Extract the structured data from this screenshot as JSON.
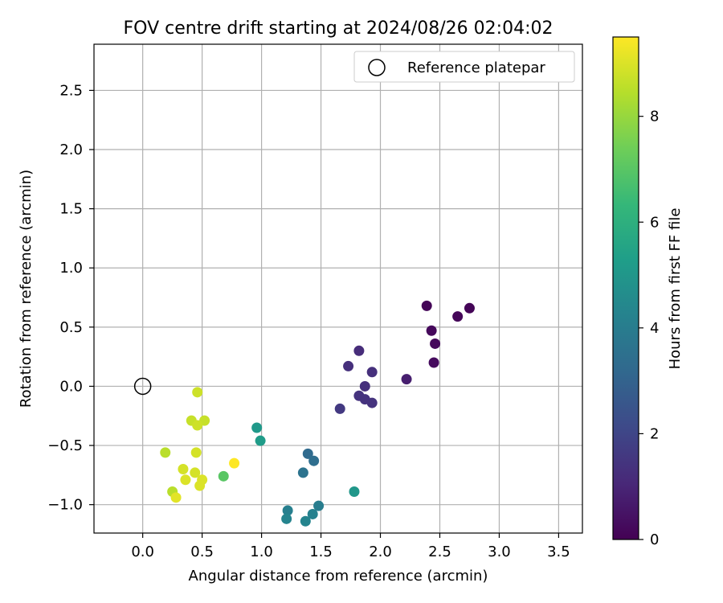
{
  "chart_data": {
    "type": "scatter",
    "title": "FOV centre drift starting at 2024/08/26 02:04:02",
    "xlabel": "Angular distance from reference (arcmin)",
    "ylabel": "Rotation from reference (arcmin)",
    "xlim": [
      -0.41,
      3.7
    ],
    "ylim": [
      -1.24,
      2.89
    ],
    "xticks": [
      "0.0",
      "0.5",
      "1.0",
      "1.5",
      "2.0",
      "2.5",
      "3.0",
      "3.5"
    ],
    "xtick_values": [
      0,
      0.5,
      1,
      1.5,
      2,
      2.5,
      3,
      3.5
    ],
    "yticks": [
      "−1.0",
      "−0.5",
      "0.0",
      "0.5",
      "1.0",
      "1.5",
      "2.0",
      "2.5"
    ],
    "ytick_values": [
      -1,
      -0.5,
      0,
      0.5,
      1,
      1.5,
      2,
      2.5
    ],
    "grid": true,
    "legend": {
      "position": "top-right",
      "entries": [
        "Reference platepar"
      ]
    },
    "reference_point": {
      "x": 0.0,
      "y": 0.0
    },
    "colorbar": {
      "label": "Hours from first FF file",
      "colormap": "viridis",
      "range": [
        0,
        9.5
      ],
      "ticks": [
        "0",
        "2",
        "4",
        "6",
        "8"
      ],
      "tick_values": [
        0,
        2,
        4,
        6,
        8
      ]
    },
    "points": [
      {
        "x": 2.39,
        "y": 0.68,
        "t": 0.1
      },
      {
        "x": 2.75,
        "y": 0.66,
        "t": 0.1
      },
      {
        "x": 2.65,
        "y": 0.59,
        "t": 0.15
      },
      {
        "x": 2.43,
        "y": 0.47,
        "t": 0.2
      },
      {
        "x": 2.46,
        "y": 0.36,
        "t": 0.2
      },
      {
        "x": 2.45,
        "y": 0.2,
        "t": 0.25
      },
      {
        "x": 2.22,
        "y": 0.06,
        "t": 0.8
      },
      {
        "x": 1.82,
        "y": 0.3,
        "t": 1.2
      },
      {
        "x": 1.73,
        "y": 0.17,
        "t": 1.3
      },
      {
        "x": 1.93,
        "y": 0.12,
        "t": 1.3
      },
      {
        "x": 1.87,
        "y": 0.0,
        "t": 1.3
      },
      {
        "x": 1.82,
        "y": -0.08,
        "t": 1.4
      },
      {
        "x": 1.87,
        "y": -0.11,
        "t": 1.4
      },
      {
        "x": 1.93,
        "y": -0.14,
        "t": 1.4
      },
      {
        "x": 1.66,
        "y": -0.19,
        "t": 1.6
      },
      {
        "x": 1.39,
        "y": -0.57,
        "t": 3.3
      },
      {
        "x": 1.44,
        "y": -0.63,
        "t": 3.4
      },
      {
        "x": 1.35,
        "y": -0.73,
        "t": 3.6
      },
      {
        "x": 1.48,
        "y": -1.01,
        "t": 4.0
      },
      {
        "x": 1.22,
        "y": -1.05,
        "t": 4.1
      },
      {
        "x": 1.43,
        "y": -1.08,
        "t": 4.2
      },
      {
        "x": 1.21,
        "y": -1.12,
        "t": 4.3
      },
      {
        "x": 1.37,
        "y": -1.14,
        "t": 4.3
      },
      {
        "x": 1.78,
        "y": -0.89,
        "t": 5.0
      },
      {
        "x": 0.96,
        "y": -0.35,
        "t": 5.1
      },
      {
        "x": 0.99,
        "y": -0.46,
        "t": 5.2
      },
      {
        "x": 0.68,
        "y": -0.76,
        "t": 7.0
      },
      {
        "x": 0.19,
        "y": -0.56,
        "t": 8.5
      },
      {
        "x": 0.25,
        "y": -0.89,
        "t": 8.5
      },
      {
        "x": 0.41,
        "y": -0.29,
        "t": 8.7
      },
      {
        "x": 0.52,
        "y": -0.29,
        "t": 8.7
      },
      {
        "x": 0.46,
        "y": -0.05,
        "t": 8.8
      },
      {
        "x": 0.46,
        "y": -0.33,
        "t": 8.8
      },
      {
        "x": 0.45,
        "y": -0.56,
        "t": 8.9
      },
      {
        "x": 0.34,
        "y": -0.7,
        "t": 8.9
      },
      {
        "x": 0.44,
        "y": -0.73,
        "t": 8.9
      },
      {
        "x": 0.36,
        "y": -0.79,
        "t": 9.0
      },
      {
        "x": 0.5,
        "y": -0.79,
        "t": 9.0
      },
      {
        "x": 0.48,
        "y": -0.84,
        "t": 9.0
      },
      {
        "x": 0.28,
        "y": -0.94,
        "t": 9.1
      },
      {
        "x": 0.77,
        "y": -0.65,
        "t": 9.5
      }
    ]
  }
}
